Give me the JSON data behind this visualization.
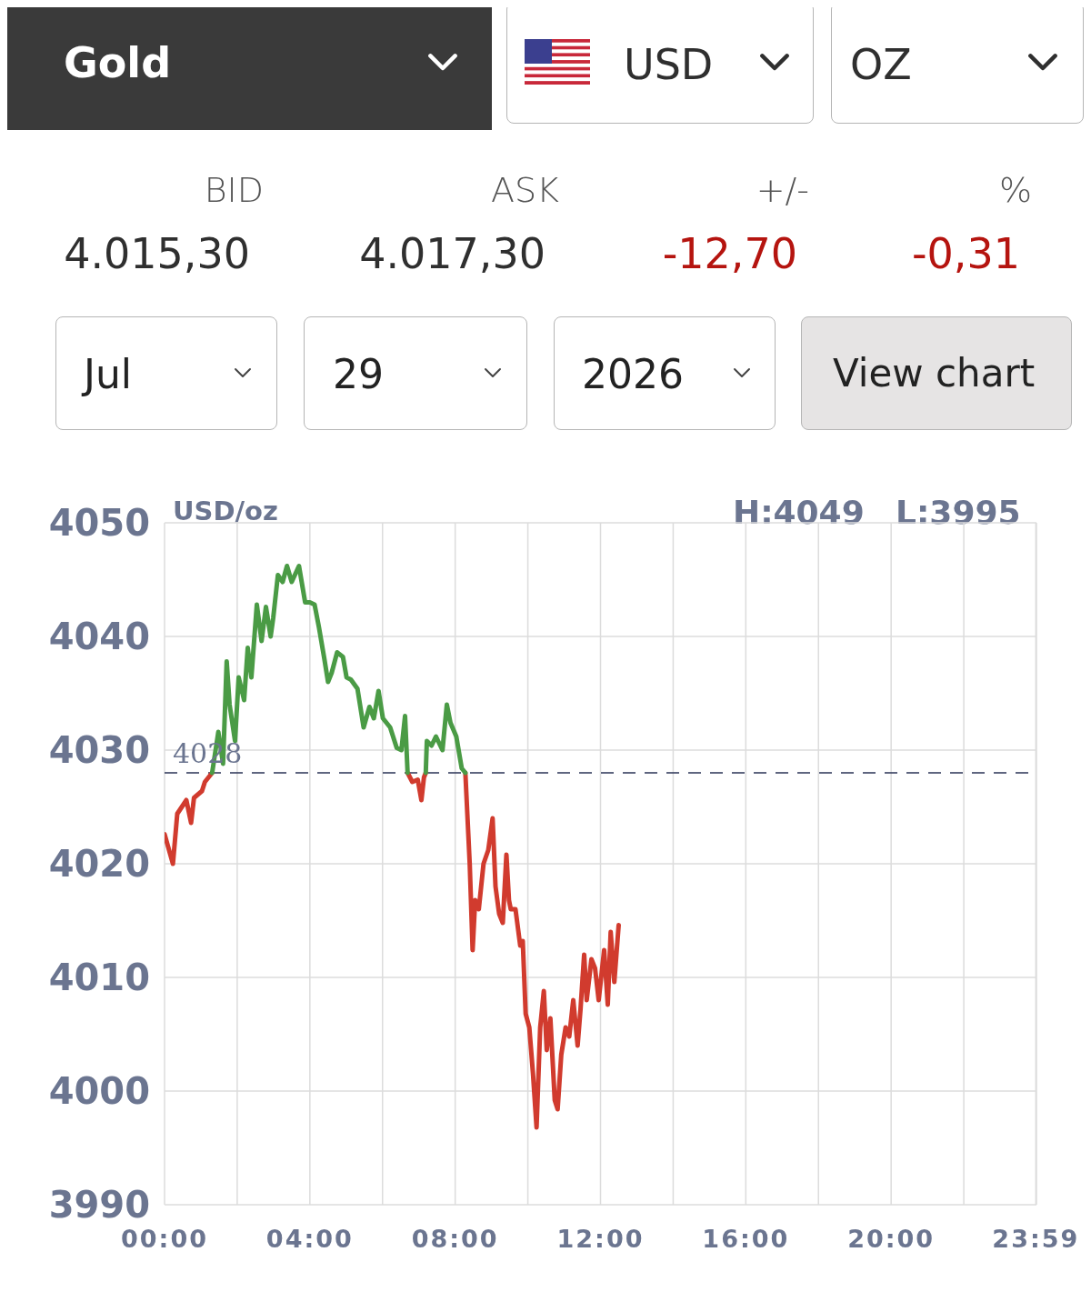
{
  "chart_data": {
    "type": "line",
    "title": "Gold",
    "ylabel": "USD/oz",
    "annotations": [
      "USD",
      "OZ",
      "BID",
      "ASK",
      "+/-",
      "%",
      "4.015,30",
      "4.017,30",
      "-12,70",
      "-0,31",
      "Jul",
      "29",
      "2026",
      "View chart",
      "H:4049",
      "L:3995"
    ],
    "series": [
      {
        "color": "#d13b2e",
        "x": [
          0.0,
          0.23,
          0.35,
          0.6,
          0.73,
          0.81,
          1.03,
          1.11,
          1.31,
          4.0,
          6.69,
          6.82,
          6.97,
          7.07,
          7.14,
          7.19,
          7.7,
          8.28,
          8.4,
          8.48,
          8.55,
          8.65,
          8.78,
          8.91,
          9.03,
          9.11,
          9.21,
          9.31,
          9.41,
          9.48,
          9.53,
          9.66,
          9.79,
          9.86,
          9.94,
          10.04,
          10.14,
          10.24,
          10.34,
          10.44,
          10.52,
          10.62,
          10.74,
          10.82,
          10.92,
          11.04,
          11.14,
          11.25,
          11.37,
          11.45,
          11.55,
          11.62,
          11.75,
          11.85,
          11.95,
          12.1,
          12.2,
          12.28,
          12.38,
          12.5
        ],
        "values": [
          4022.6,
          4020.0,
          4024.4,
          4025.6,
          4023.6,
          4025.8,
          4026.4,
          4027.2,
          4028.0,
          null,
          4028.0,
          4027.2,
          4027.4,
          4025.6,
          4027.6,
          4028.0,
          null,
          4028.0,
          4020.0,
          4012.4,
          4016.8,
          4016.0,
          4020.0,
          4021.2,
          4024.0,
          4018.0,
          4015.6,
          4014.8,
          4020.8,
          4016.8,
          4016.0,
          4016.0,
          4012.8,
          4013.2,
          4006.8,
          4005.6,
          4001.6,
          3996.8,
          4005.6,
          4008.8,
          4003.6,
          4006.4,
          3999.2,
          3998.4,
          4003.2,
          4005.6,
          4004.8,
          4008.0,
          4004.0,
          4007.2,
          4012.0,
          4008.0,
          4011.6,
          4010.8,
          4008.0,
          4012.4,
          4007.6,
          4014.0,
          4009.6,
          4014.6
        ]
      },
      {
        "color": "#4a9b45",
        "x": [
          1.31,
          1.48,
          1.61,
          1.71,
          1.79,
          1.94,
          2.04,
          2.19,
          2.29,
          2.39,
          2.54,
          2.67,
          2.79,
          2.92,
          2.99,
          3.12,
          3.25,
          3.37,
          3.5,
          3.7,
          3.87,
          4.0,
          4.13,
          4.25,
          4.4,
          4.5,
          4.6,
          4.75,
          4.91,
          5.01,
          5.13,
          5.31,
          5.48,
          5.64,
          5.76,
          5.89,
          6.01,
          6.11,
          6.21,
          6.39,
          6.52,
          6.62,
          6.69,
          6.9,
          7.19,
          7.22,
          7.35,
          7.47,
          7.65,
          7.77,
          7.87,
          8.03,
          8.18,
          8.28
        ],
        "values": [
          4028.0,
          4031.6,
          4028.8,
          4037.8,
          4034.0,
          4030.8,
          4036.4,
          4034.4,
          4039.0,
          4036.4,
          4042.8,
          4039.6,
          4042.6,
          4040.0,
          4041.6,
          4045.4,
          4044.8,
          4046.2,
          4044.8,
          4046.2,
          4043.0,
          4043.0,
          4042.8,
          4040.8,
          4038.0,
          4036.0,
          4036.8,
          4038.6,
          4038.2,
          4036.4,
          4036.2,
          4035.4,
          4032.0,
          4033.8,
          4032.8,
          4035.2,
          4032.8,
          4032.4,
          4032.0,
          4030.2,
          4030.0,
          4033.0,
          4028.0,
          null,
          4028.0,
          4030.8,
          4030.4,
          4031.2,
          4030.0,
          4034.0,
          4032.4,
          4031.2,
          4028.4,
          4028.0
        ]
      }
    ],
    "xlim": [
      0,
      24
    ],
    "xticks": [
      {
        "value": 0,
        "label": "00:00"
      },
      {
        "value": 2,
        "label": null
      },
      {
        "value": 4,
        "label": "04:00"
      },
      {
        "value": 6,
        "label": null
      },
      {
        "value": 8,
        "label": "08:00"
      },
      {
        "value": 10,
        "label": null
      },
      {
        "value": 12,
        "label": "12:00"
      },
      {
        "value": 14,
        "label": null
      },
      {
        "value": 16,
        "label": "16:00"
      },
      {
        "value": 18,
        "label": null
      },
      {
        "value": 20,
        "label": "20:00"
      },
      {
        "value": 22,
        "label": null
      },
      {
        "value": 23.983,
        "label": "23:59"
      }
    ],
    "ylim": [
      3990,
      4050
    ],
    "yticks": [
      3990,
      4000,
      4010,
      4020,
      4030,
      4040,
      4050
    ],
    "grid": true,
    "marker": "none",
    "line_style": "solid",
    "ref_lines": [
      {
        "axis": "y",
        "value": 4028,
        "label": "4028",
        "line_style": "dashed",
        "color": "#2b3557"
      }
    ]
  }
}
